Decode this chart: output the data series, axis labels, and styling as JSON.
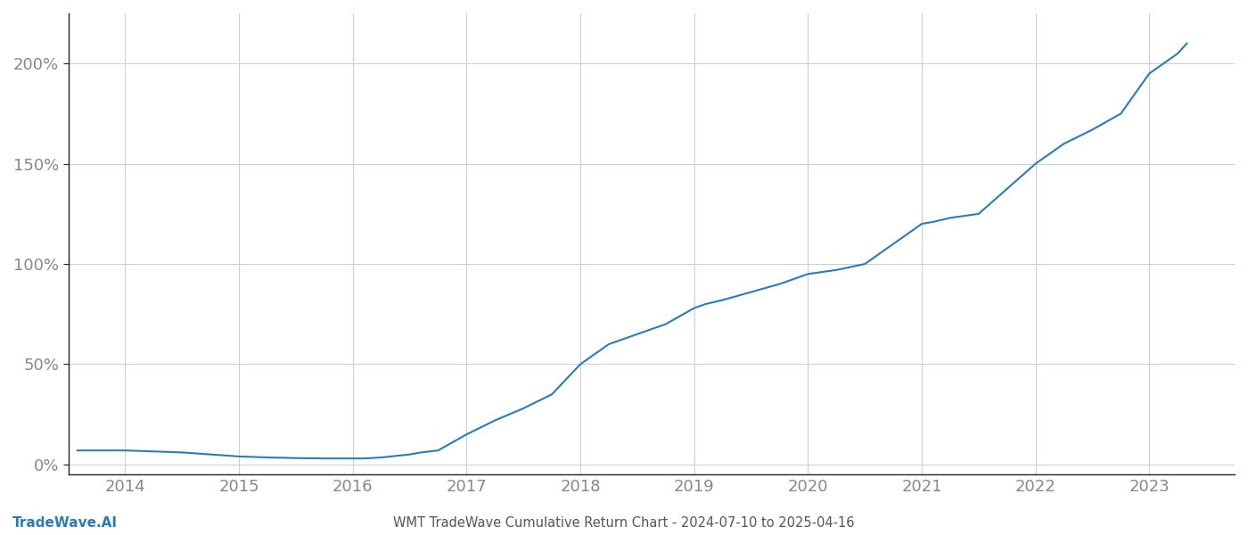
{
  "title": "WMT TradeWave Cumulative Return Chart - 2024-07-10 to 2025-04-16",
  "watermark": "TradeWave.AI",
  "line_color": "#2b7bb9",
  "line_width": 1.5,
  "background_color": "#ffffff",
  "grid_color": "#cccccc",
  "x_years": [
    2014,
    2015,
    2016,
    2017,
    2018,
    2019,
    2020,
    2021,
    2022,
    2023
  ],
  "x_data": [
    2013.58,
    2013.75,
    2014.0,
    2014.25,
    2014.5,
    2014.75,
    2015.0,
    2015.25,
    2015.5,
    2015.75,
    2016.0,
    2016.1,
    2016.25,
    2016.5,
    2016.6,
    2016.75,
    2017.0,
    2017.25,
    2017.5,
    2017.75,
    2018.0,
    2018.25,
    2018.5,
    2018.75,
    2019.0,
    2019.1,
    2019.25,
    2019.5,
    2019.75,
    2020.0,
    2020.25,
    2020.5,
    2020.75,
    2021.0,
    2021.1,
    2021.25,
    2021.5,
    2022.0,
    2022.25,
    2022.5,
    2022.75,
    2023.0,
    2023.25,
    2023.33
  ],
  "y_data": [
    7,
    7,
    7,
    6.5,
    6,
    5,
    4,
    3.5,
    3.2,
    3,
    3,
    3,
    3.5,
    5,
    6,
    7,
    15,
    22,
    28,
    35,
    50,
    60,
    65,
    70,
    78,
    80,
    82,
    86,
    90,
    95,
    97,
    100,
    110,
    120,
    121,
    123,
    125,
    150,
    160,
    167,
    175,
    195,
    205,
    210
  ],
  "yticks": [
    0,
    50,
    100,
    150,
    200
  ],
  "ylim": [
    -5,
    225
  ],
  "xlim": [
    2013.5,
    2023.75
  ],
  "title_fontsize": 10.5,
  "watermark_fontsize": 11,
  "tick_fontsize": 13,
  "tick_color": "#888888",
  "title_color": "#555555",
  "spine_color": "#222222"
}
